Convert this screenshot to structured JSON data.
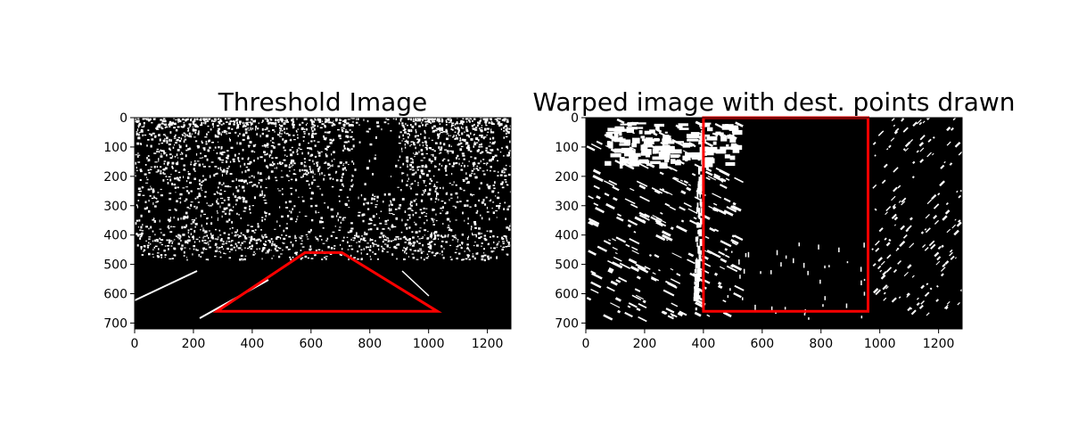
{
  "chart_data": [
    {
      "type": "image",
      "title": "Threshold Image",
      "xlim": [
        0,
        1280
      ],
      "ylim": [
        720,
        0
      ],
      "x_ticks": [
        0,
        200,
        400,
        600,
        800,
        1000,
        1200
      ],
      "y_ticks": [
        0,
        100,
        200,
        300,
        400,
        500,
        600,
        700
      ],
      "overlay": {
        "color": "#ff0000",
        "closed": true,
        "points": [
          [
            580,
            460
          ],
          [
            705,
            460
          ],
          [
            1030,
            660
          ],
          [
            280,
            660
          ]
        ]
      }
    },
    {
      "type": "image",
      "title": "Warped image with dest. points drawn",
      "xlim": [
        0,
        1280
      ],
      "ylim": [
        720,
        0
      ],
      "x_ticks": [
        0,
        200,
        400,
        600,
        800,
        1000,
        1200
      ],
      "y_ticks": [
        0,
        100,
        200,
        300,
        400,
        500,
        600,
        700
      ],
      "overlay": {
        "color": "#ff0000",
        "closed": true,
        "points": [
          [
            400,
            0
          ],
          [
            960,
            0
          ],
          [
            960,
            660
          ],
          [
            400,
            660
          ]
        ]
      }
    }
  ],
  "colors": {
    "image_background": "#000000",
    "image_pixels": "#ffffff",
    "overlay": "#ff0000"
  }
}
